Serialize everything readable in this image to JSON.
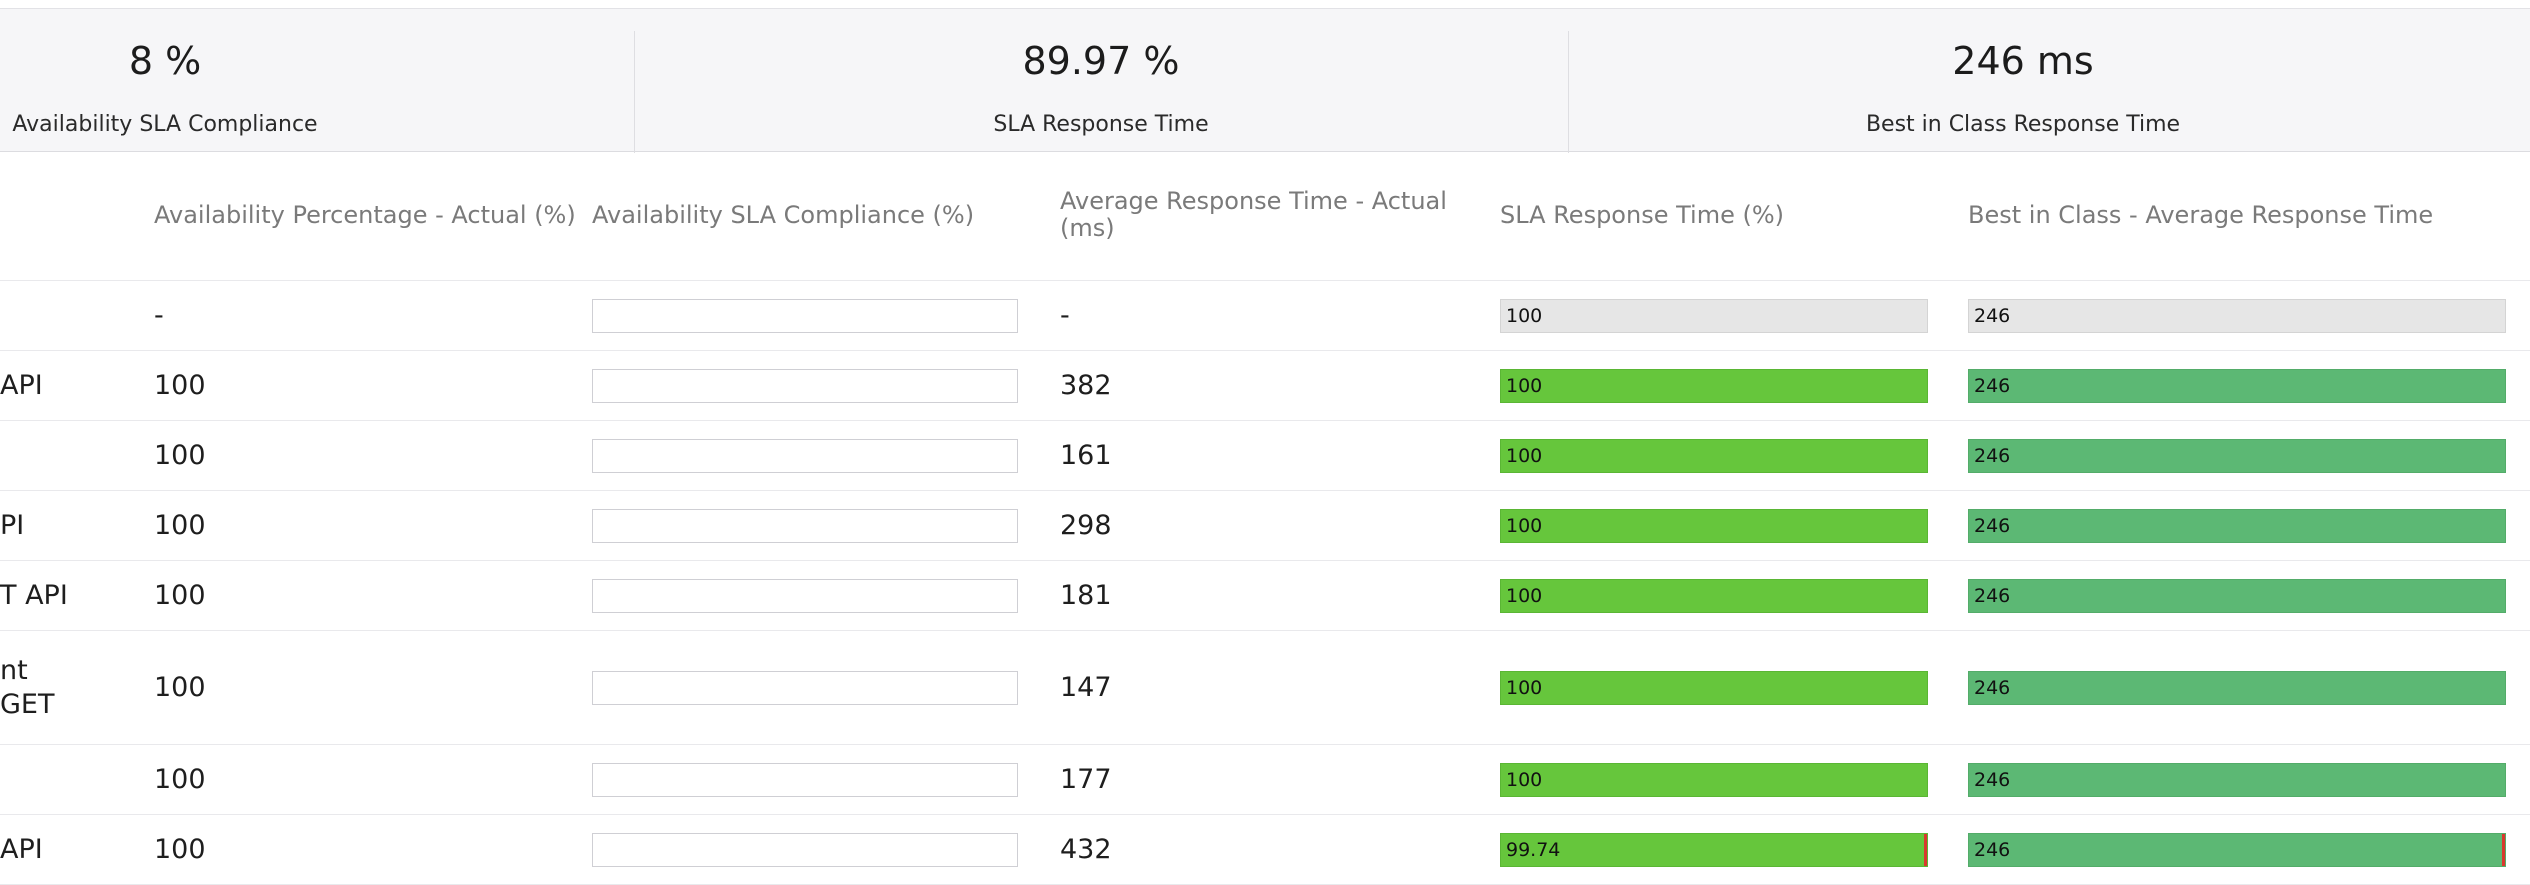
{
  "summary": {
    "availability_value": "8 %",
    "availability_label": "Availability SLA Compliance",
    "sla_response_value": "89.97 %",
    "sla_response_label": "SLA Response Time",
    "best_value": "246 ms",
    "best_label": "Best in Class Response Time"
  },
  "columns": {
    "availability_actual": "Availability Percentage - Actual (%)",
    "availability_sla": "Availability SLA Compliance (%)",
    "avg_response": "Average Response Time - Actual (ms)",
    "sla_response": "SLA Response Time (%)",
    "best_in_class": "Best in Class - Average Response Time"
  },
  "rows": [
    {
      "name": "",
      "availability": "-",
      "avg_response": "-",
      "sla_response": "100",
      "sla_level": 1.0,
      "best": "246"
    },
    {
      "name": "API",
      "availability": "100",
      "avg_response": "382",
      "sla_response": "100",
      "sla_level": 1.0,
      "best": "246"
    },
    {
      "name": "",
      "availability": "100",
      "avg_response": "161",
      "sla_response": "100",
      "sla_level": 1.0,
      "best": "246"
    },
    {
      "name": "PI",
      "availability": "100",
      "avg_response": "298",
      "sla_response": "100",
      "sla_level": 1.0,
      "best": "246"
    },
    {
      "name": "T API",
      "availability": "100",
      "avg_response": "181",
      "sla_response": "100",
      "sla_level": 1.0,
      "best": "246"
    },
    {
      "name": "nt GET",
      "availability": "100",
      "avg_response": "147",
      "sla_response": "100",
      "sla_level": 1.0,
      "best": "246"
    },
    {
      "name": "",
      "availability": "100",
      "avg_response": "177",
      "sla_response": "100",
      "sla_level": 1.0,
      "best": "246"
    },
    {
      "name": "API",
      "availability": "100",
      "avg_response": "432",
      "sla_response": "99.74",
      "sla_level": 0.9974,
      "best": "246"
    }
  ],
  "colors": {
    "summary_bg": "#f6f6f8",
    "sla_bar_green": "#66c63c",
    "best_bar_green": "#5cb874",
    "neutral_bar": "#e6e6e6",
    "threshold_marker": "#d9382e"
  }
}
